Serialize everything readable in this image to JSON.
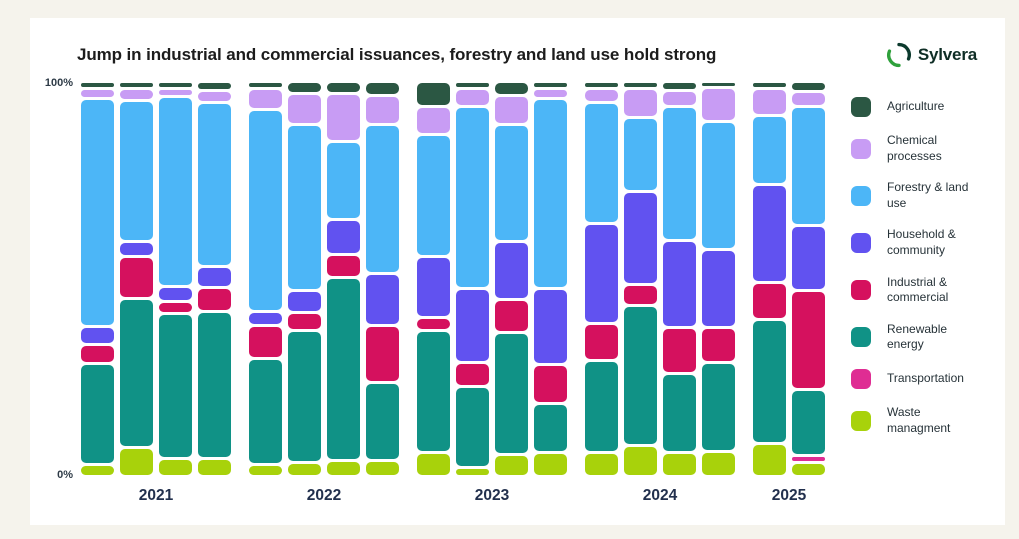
{
  "title": "Jump in industrial and commercial issuances, forestry and land use hold strong",
  "logo": {
    "text": "Sylvera",
    "icon": "sylvera-ring-icon",
    "dark_green": "#0c3a2d",
    "bright_green": "#2fa13c"
  },
  "background_color": "#f5f3ec",
  "card_color": "#ffffff",
  "chart_data": {
    "type": "bar",
    "subtype": "100pct-stacked-vertical",
    "title": "Jump in industrial and commercial issuances, forestry and land use hold strong",
    "xlabel": "",
    "ylabel": "",
    "ylim": [
      0,
      100
    ],
    "y_axis": {
      "top": "100%",
      "bottom": "0%"
    },
    "grid": false,
    "legend_position": "right",
    "groups": [
      {
        "label": "2021",
        "bars": 4
      },
      {
        "label": "2022",
        "bars": 4
      },
      {
        "label": "2023",
        "bars": 4
      },
      {
        "label": "2024",
        "bars": 4
      },
      {
        "label": "2025",
        "bars": 2
      }
    ],
    "stack_order_top_to_bottom": [
      "Agriculture",
      "Chemical processes",
      "Forestry & land use",
      "Household & community",
      "Industrial & commercial",
      "Renewable energy",
      "Transportation",
      "Waste managment"
    ],
    "series": [
      {
        "name": "Agriculture",
        "color": "#2b5743",
        "values": [
          1,
          1,
          1,
          1.5,
          1,
          2.5,
          2.5,
          3,
          6,
          1,
          3,
          1,
          1,
          1,
          1.5,
          0.5,
          1,
          2
        ]
      },
      {
        "name": "Chemical processes",
        "color": "#c89cf4",
        "values": [
          2,
          2.5,
          1.5,
          2.5,
          5,
          7.5,
          12,
          7,
          6.5,
          4,
          7,
          2,
          3,
          7,
          3.5,
          8.5,
          6.5,
          3
        ]
      },
      {
        "name": "Forestry & land use",
        "color": "#4cb6f7",
        "values": [
          60,
          37,
          50,
          43,
          53,
          43.5,
          20,
          39,
          32,
          48,
          30.5,
          50,
          31.5,
          19,
          35,
          33.5,
          17.5,
          31.5
        ]
      },
      {
        "name": "Household & community",
        "color": "#6152f0",
        "values": [
          4,
          3,
          3,
          5,
          3,
          5,
          8.5,
          13,
          15.5,
          19,
          14.5,
          19.5,
          26,
          24,
          22.5,
          20,
          25.5,
          16.5
        ]
      },
      {
        "name": "Industrial & commercial",
        "color": "#d5115e",
        "values": [
          4.5,
          10.5,
          2.5,
          5.5,
          8,
          4,
          5.5,
          14.5,
          2.5,
          5.5,
          8,
          9.5,
          9,
          5,
          11.5,
          8.5,
          9,
          26
        ]
      },
      {
        "name": "Renewable energy",
        "color": "#109286",
        "values": [
          26,
          39,
          38,
          38.5,
          27.5,
          34.5,
          48,
          20,
          32,
          21,
          32,
          12.5,
          24,
          36.5,
          20.5,
          23,
          32.5,
          17
        ]
      },
      {
        "name": "Transportation",
        "color": "#df2d93",
        "values": [
          0,
          0,
          0,
          0,
          0,
          0,
          0,
          0,
          0,
          0,
          0,
          0,
          0,
          0,
          0,
          0,
          0,
          1
        ]
      },
      {
        "name": "Waste managment",
        "color": "#a8d20b",
        "values": [
          2.5,
          7,
          4,
          4,
          2.5,
          3,
          3.5,
          3.5,
          5.5,
          1.5,
          5,
          5.5,
          5.5,
          7.5,
          5.5,
          6,
          8,
          3
        ]
      }
    ]
  }
}
